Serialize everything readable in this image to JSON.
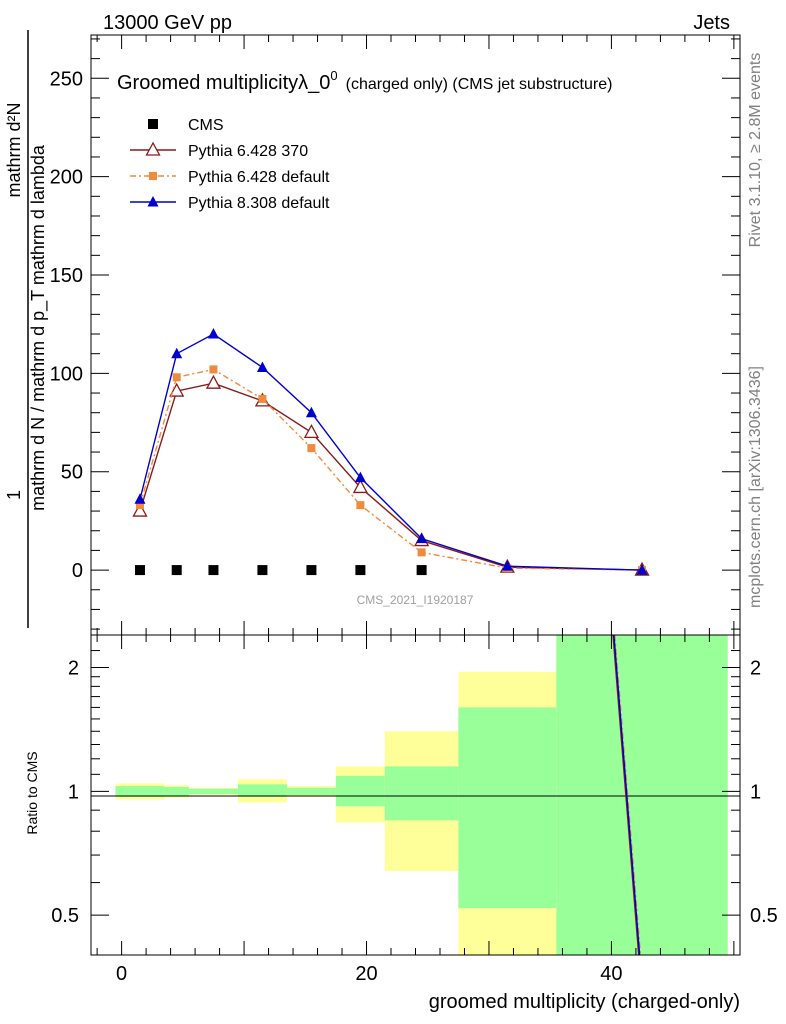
{
  "header": {
    "left": "13000 GeV pp",
    "right": "Jets",
    "side_top": "Rivet 3.1.10, ≥ 2.8M events",
    "side_bottom": "mcplots.cern.ch [arXiv:1306.3436]"
  },
  "chart_data": [
    {
      "type": "line",
      "title": "Groomed multiplicityλ_0",
      "title_sup": "0",
      "subtitle": "(charged only) (CMS jet substructure)",
      "watermark": "CMS_2021_I1920187",
      "ylabel": {
        "numerator": "1",
        "numerator2": "mathrm d²N",
        "denominator": "mathrm d N / mathrm d p_T mathrm d lambda"
      },
      "ylim": [
        -33,
        272
      ],
      "y_ticks": [
        0,
        50,
        100,
        150,
        200,
        250
      ],
      "xlim": [
        -2.5,
        50.5
      ],
      "x": [
        1.5,
        4.5,
        7.5,
        11.5,
        15.5,
        19.5,
        24.5,
        31.5,
        42.5
      ],
      "legend_position": "top-left",
      "series": [
        {
          "name": "CMS",
          "color": "#000000",
          "marker": "square",
          "values": [
            0,
            0,
            0,
            0,
            0,
            0,
            0,
            0,
            0
          ]
        },
        {
          "name": "Pythia 6.428 370",
          "color": "#8b1a1a",
          "marker": "open-triangle",
          "values": [
            30,
            91,
            95,
            86,
            70,
            42,
            15,
            1.5,
            0
          ]
        },
        {
          "name": "Pythia 6.428 default",
          "color": "#f08a3c",
          "marker": "filled-square",
          "values": [
            33,
            98,
            102,
            87,
            62,
            33,
            9,
            1,
            0
          ]
        },
        {
          "name": "Pythia 8.308 default",
          "color": "#0000cc",
          "marker": "filled-triangle",
          "values": [
            36,
            110,
            120,
            103,
            80,
            47,
            16,
            2,
            0
          ]
        }
      ]
    },
    {
      "type": "line",
      "ylabel": "Ratio to CMS",
      "xlabel": "groomed multiplicity (charged-only)",
      "log_scale_y": true,
      "ylim": [
        0.4,
        2.4
      ],
      "y_ticks": [
        0.5,
        1,
        2
      ],
      "x_ticks": [
        0,
        20,
        40
      ],
      "xlim": [
        -2.5,
        50.5
      ],
      "bands": [
        {
          "x": [
            -0.5,
            3.5
          ],
          "yellow": [
            0.955,
            1.045
          ],
          "green": [
            0.97,
            1.03
          ]
        },
        {
          "x": [
            3.5,
            5.5
          ],
          "yellow": [
            0.965,
            1.035
          ],
          "green": [
            0.975,
            1.025
          ]
        },
        {
          "x": [
            5.5,
            9.5
          ],
          "yellow": [
            0.98,
            1.02
          ],
          "green": [
            0.985,
            1.015
          ]
        },
        {
          "x": [
            9.5,
            13.5
          ],
          "yellow": [
            0.94,
            1.07
          ],
          "green": [
            0.97,
            1.04
          ]
        },
        {
          "x": [
            13.5,
            17.5
          ],
          "yellow": [
            0.97,
            1.03
          ],
          "green": [
            0.98,
            1.02
          ]
        },
        {
          "x": [
            17.5,
            21.5
          ],
          "yellow": [
            0.84,
            1.15
          ],
          "green": [
            0.92,
            1.09
          ]
        },
        {
          "x": [
            21.5,
            27.5
          ],
          "yellow": [
            0.64,
            1.4
          ],
          "green": [
            0.85,
            1.15
          ]
        },
        {
          "x": [
            27.5,
            35.5
          ],
          "yellow": [
            0.4,
            1.95
          ],
          "green": [
            0.52,
            1.6
          ]
        },
        {
          "x": [
            35.5,
            49.5
          ],
          "yellow": [
            0.4,
            2.4
          ],
          "green": [
            0.4,
            2.4
          ]
        }
      ],
      "ratio_line": {
        "color": "#0000cc",
        "x_top": 40.2,
        "x_bottom": 42.3
      }
    }
  ]
}
